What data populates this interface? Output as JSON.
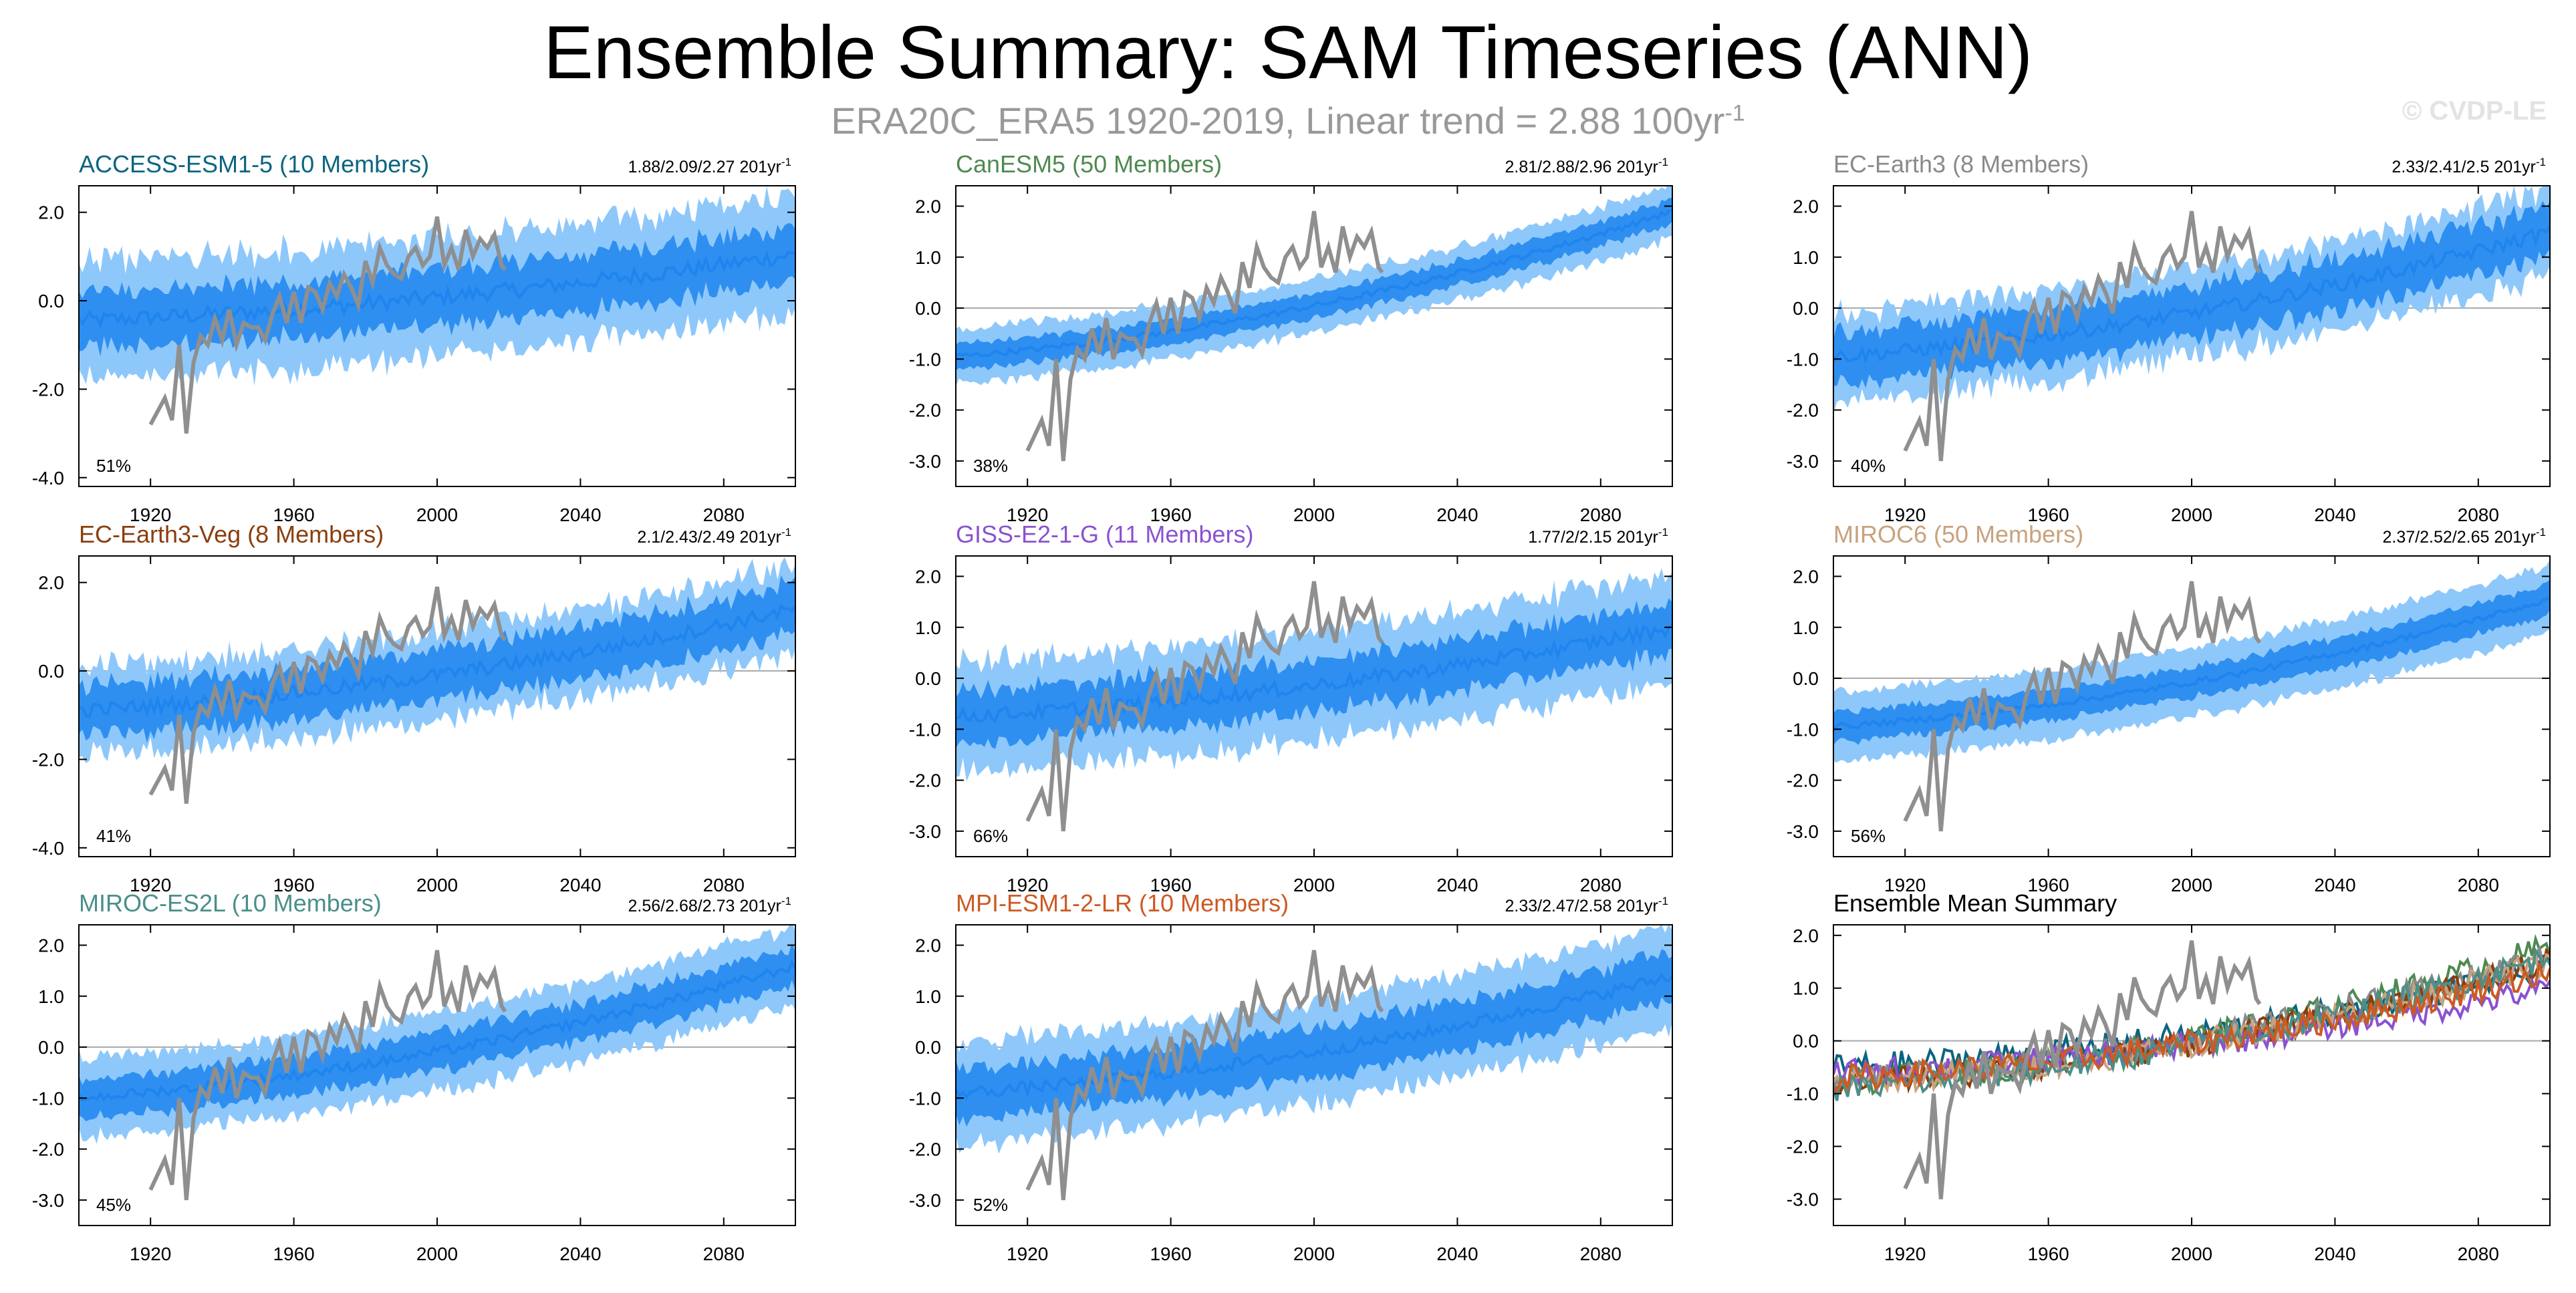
{
  "title": "Ensemble Summary: SAM Timeseries (ANN)",
  "subtitle": {
    "text": "ERA20C_ERA5 1920-2019, Linear trend = 2.88 100yr",
    "sup": "-1"
  },
  "watermark": "© CVDP-LE",
  "colors": {
    "obs": "#8f8f8f",
    "ens_mean": "#1f84ee",
    "band_inner": "#2e8ff0",
    "band_outer": "#8ec8fb",
    "zero_line": "#aaaaaa"
  },
  "chart_data": [
    {
      "type": "area",
      "name": "ACCESS-ESM1-5 (10 Members)",
      "title": "ACCESS-ESM1-5 (10 Members)",
      "title_color": "#0b6580",
      "trend": "1.88/2.09/2.27 201yr",
      "trend_sup": "-1",
      "pct": "51%",
      "ylim": [
        -4.2,
        2.6
      ],
      "yticks": [
        2.0,
        0.0,
        -2.0,
        -4.0
      ],
      "yticklabels": [
        "2.0",
        "0.0",
        "-2.0",
        "-4.0"
      ],
      "xlim": [
        1900,
        2100
      ],
      "xticks": [
        1920,
        1960,
        2000,
        2040,
        2080
      ],
      "ens_mean_start": -0.45,
      "ens_mean_end": 1.05,
      "inner_half": 0.5,
      "outer_half": 1.1,
      "noise": 0.45
    },
    {
      "type": "area",
      "name": "CanESM5 (50 Members)",
      "title": "CanESM5 (50 Members)",
      "title_color": "#4e8a50",
      "trend": "2.81/2.88/2.96 201yr",
      "trend_sup": "-1",
      "pct": "38%",
      "ylim": [
        -3.5,
        2.4
      ],
      "yticks": [
        2.0,
        1.0,
        0.0,
        -1.0,
        -2.0,
        -3.0
      ],
      "yticklabels": [
        "2.0",
        "1.0",
        "0.0",
        "-1.0",
        "-2.0",
        "-3.0"
      ],
      "xlim": [
        1900,
        2100
      ],
      "xticks": [
        1920,
        1960,
        2000,
        2040,
        2080
      ],
      "ens_mean_start": -0.95,
      "ens_mean_end": 1.9,
      "inner_half": 0.2,
      "outer_half": 0.45,
      "noise": 0.15
    },
    {
      "type": "area",
      "name": "EC-Earth3 (8 Members)",
      "title": "EC-Earth3 (8 Members)",
      "title_color": "#8a8a8a",
      "trend": "2.33/2.41/2.5 201yr",
      "trend_sup": "-1",
      "pct": "40%",
      "ylim": [
        -3.5,
        2.4
      ],
      "yticks": [
        2.0,
        1.0,
        0.0,
        -1.0,
        -2.0,
        -3.0
      ],
      "yticklabels": [
        "2.0",
        "1.0",
        "0.0",
        "-1.0",
        "-2.0",
        "-3.0"
      ],
      "xlim": [
        1900,
        2100
      ],
      "xticks": [
        1920,
        1960,
        2000,
        2040,
        2080
      ],
      "ens_mean_start": -0.95,
      "ens_mean_end": 1.5,
      "inner_half": 0.4,
      "outer_half": 0.7,
      "noise": 0.35
    },
    {
      "type": "area",
      "name": "EC-Earth3-Veg (8 Members)",
      "title": "EC-Earth3-Veg (8 Members)",
      "title_color": "#8a3e0e",
      "trend": "2.1/2.43/2.49 201yr",
      "trend_sup": "-1",
      "pct": "41%",
      "ylim": [
        -4.2,
        2.6
      ],
      "yticks": [
        2.0,
        0.0,
        -2.0,
        -4.0
      ],
      "yticklabels": [
        "2.0",
        "0.0",
        "-2.0",
        "-4.0"
      ],
      "xlim": [
        1900,
        2100
      ],
      "xticks": [
        1920,
        1960,
        2000,
        2040,
        2080
      ],
      "ens_mean_start": -0.9,
      "ens_mean_end": 1.4,
      "inner_half": 0.45,
      "outer_half": 0.8,
      "noise": 0.4
    },
    {
      "type": "area",
      "name": "GISS-E2-1-G (11 Members)",
      "title": "GISS-E2-1-G (11 Members)",
      "title_color": "#8a52d0",
      "trend": "1.77/2/2.15 201yr",
      "trend_sup": "-1",
      "pct": "66%",
      "ylim": [
        -3.5,
        2.4
      ],
      "yticks": [
        2.0,
        1.0,
        0.0,
        -1.0,
        -2.0,
        -3.0
      ],
      "yticklabels": [
        "2.0",
        "1.0",
        "0.0",
        "-1.0",
        "-2.0",
        "-3.0"
      ],
      "xlim": [
        1900,
        2100
      ],
      "xticks": [
        1920,
        1960,
        2000,
        2040,
        2080
      ],
      "ens_mean_start": -0.75,
      "ens_mean_end": 1.0,
      "inner_half": 0.4,
      "outer_half": 0.9,
      "noise": 0.35
    },
    {
      "type": "area",
      "name": "MIROC6 (50 Members)",
      "title": "MIROC6 (50 Members)",
      "title_color": "#c8a27e",
      "trend": "2.37/2.52/2.65 201yr",
      "trend_sup": "-1",
      "pct": "56%",
      "ylim": [
        -3.5,
        2.4
      ],
      "yticks": [
        2.0,
        1.0,
        0.0,
        -1.0,
        -2.0,
        -3.0
      ],
      "yticklabels": [
        "2.0",
        "1.0",
        "0.0",
        "-1.0",
        "-2.0",
        "-3.0"
      ],
      "xlim": [
        1900,
        2100
      ],
      "xticks": [
        1920,
        1960,
        2000,
        2040,
        2080
      ],
      "ens_mean_start": -0.95,
      "ens_mean_end": 1.55,
      "inner_half": 0.25,
      "outer_half": 0.6,
      "noise": 0.15
    },
    {
      "type": "area",
      "name": "MIROC-ES2L (10 Members)",
      "title": "MIROC-ES2L (10 Members)",
      "title_color": "#4a8f8a",
      "trend": "2.56/2.68/2.73 201yr",
      "trend_sup": "-1",
      "pct": "45%",
      "ylim": [
        -3.5,
        2.4
      ],
      "yticks": [
        2.0,
        1.0,
        0.0,
        -1.0,
        -2.0,
        -3.0
      ],
      "yticklabels": [
        "2.0",
        "1.0",
        "0.0",
        "-1.0",
        "-2.0",
        "-3.0"
      ],
      "xlim": [
        1900,
        2100
      ],
      "xticks": [
        1920,
        1960,
        2000,
        2040,
        2080
      ],
      "ens_mean_start": -1.0,
      "ens_mean_end": 1.6,
      "inner_half": 0.3,
      "outer_half": 0.65,
      "noise": 0.25
    },
    {
      "type": "area",
      "name": "MPI-ESM1-2-LR (10 Members)",
      "title": "MPI-ESM1-2-LR (10 Members)",
      "title_color": "#cc5a22",
      "trend": "2.33/2.47/2.58 201yr",
      "trend_sup": "-1",
      "pct": "52%",
      "ylim": [
        -3.5,
        2.4
      ],
      "yticks": [
        2.0,
        1.0,
        0.0,
        -1.0,
        -2.0,
        -3.0
      ],
      "yticklabels": [
        "2.0",
        "1.0",
        "0.0",
        "-1.0",
        "-2.0",
        "-3.0"
      ],
      "xlim": [
        1900,
        2100
      ],
      "xticks": [
        1920,
        1960,
        2000,
        2040,
        2080
      ],
      "ens_mean_start": -0.9,
      "ens_mean_end": 1.4,
      "inner_half": 0.4,
      "outer_half": 0.85,
      "noise": 0.3
    },
    {
      "type": "line",
      "name": "Ensemble Mean Summary",
      "title": "Ensemble Mean Summary",
      "title_color": "#000000",
      "trend": "",
      "trend_sup": "",
      "pct": "",
      "ylim": [
        -3.5,
        2.2
      ],
      "yticks": [
        2.0,
        1.0,
        0.0,
        -1.0,
        -2.0,
        -3.0
      ],
      "yticklabels": [
        "2.0",
        "1.0",
        "0.0",
        "-1.0",
        "-2.0",
        "-3.0"
      ],
      "xlim": [
        1900,
        2100
      ],
      "xticks": [
        1920,
        1960,
        2000,
        2040,
        2080
      ],
      "series": [
        {
          "color": "#0b6580",
          "start": -0.5,
          "end": 1.4
        },
        {
          "color": "#4e8a50",
          "start": -0.8,
          "end": 1.8
        },
        {
          "color": "#8a8a8a",
          "start": -0.7,
          "end": 1.6
        },
        {
          "color": "#8a3e0e",
          "start": -0.8,
          "end": 1.5
        },
        {
          "color": "#8a52d0",
          "start": -0.6,
          "end": 1.0
        },
        {
          "color": "#c8a27e",
          "start": -0.8,
          "end": 1.5
        },
        {
          "color": "#4a8f8a",
          "start": -0.9,
          "end": 1.6
        },
        {
          "color": "#cc5a22",
          "start": -0.7,
          "end": 1.3
        }
      ]
    }
  ],
  "obs": {
    "years": [
      1920,
      1922,
      1924,
      1926,
      1928,
      1930,
      1932,
      1934,
      1936,
      1938,
      1940,
      1942,
      1944,
      1946,
      1948,
      1950,
      1952,
      1954,
      1956,
      1958,
      1960,
      1962,
      1964,
      1966,
      1968,
      1970,
      1972,
      1974,
      1976,
      1978,
      1980,
      1982,
      1984,
      1986,
      1988,
      1990,
      1992,
      1994,
      1996,
      1998,
      2000,
      2002,
      2004,
      2006,
      2008,
      2010,
      2012,
      2014,
      2016,
      2018,
      2019
    ],
    "values": [
      -2.8,
      -2.5,
      -2.2,
      -2.7,
      -1.0,
      -3.0,
      -1.4,
      -0.8,
      -1.0,
      -0.4,
      -0.9,
      -0.2,
      -1.0,
      -0.5,
      -0.6,
      -0.6,
      -0.9,
      -0.3,
      0.1,
      -0.5,
      0.2,
      -0.5,
      0.3,
      0.2,
      -0.2,
      0.4,
      0.1,
      0.6,
      0.3,
      -0.1,
      0.9,
      0.4,
      1.2,
      0.8,
      0.6,
      0.5,
      1.0,
      1.2,
      0.8,
      1.0,
      1.9,
      0.8,
      1.2,
      0.7,
      1.6,
      1.0,
      1.4,
      1.2,
      1.5,
      0.8,
      0.7
    ]
  }
}
